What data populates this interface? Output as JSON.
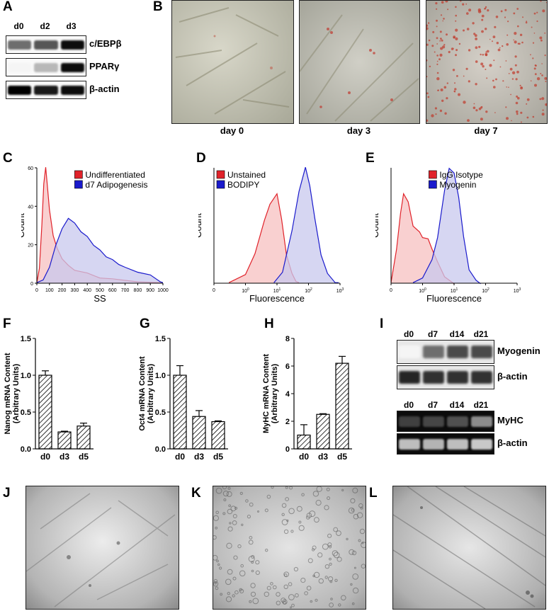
{
  "panels": {
    "a": {
      "label": "A",
      "lanes": [
        "d0",
        "d2",
        "d3"
      ],
      "blots": [
        {
          "name": "c/EBPβ",
          "intensity": [
            0.55,
            0.65,
            0.95
          ]
        },
        {
          "name": "PPARγ",
          "intensity": [
            0.0,
            0.25,
            0.95
          ]
        },
        {
          "name": "β-actin",
          "intensity": [
            1.0,
            0.9,
            0.95
          ]
        }
      ]
    },
    "b": {
      "label": "B",
      "captions": [
        "day 0",
        "day 3",
        "day 7"
      ]
    },
    "c": {
      "label": "C"
    },
    "d": {
      "label": "D"
    },
    "e": {
      "label": "E"
    },
    "f": {
      "label": "F"
    },
    "g": {
      "label": "G"
    },
    "h": {
      "label": "H"
    },
    "i": {
      "label": "I",
      "top_lanes": [
        "d0",
        "d7",
        "d14",
        "d21"
      ],
      "top_blots": [
        {
          "name": "Myogenin",
          "intensity": [
            0.0,
            0.55,
            0.7,
            0.7
          ]
        },
        {
          "name": "β-actin",
          "intensity": [
            0.85,
            0.8,
            0.8,
            0.8
          ]
        }
      ],
      "bottom_lanes": [
        "d0",
        "d7",
        "d14",
        "d21"
      ],
      "bottom_gels": [
        {
          "name": "MyHC",
          "intensity": [
            0.12,
            0.15,
            0.2,
            0.5
          ]
        },
        {
          "name": "β-actin",
          "intensity": [
            0.75,
            0.7,
            0.75,
            0.8
          ]
        }
      ]
    },
    "j": {
      "label": "J"
    },
    "k": {
      "label": "K"
    },
    "l": {
      "label": "L"
    }
  },
  "chart_data": [
    {
      "id": "C",
      "type": "area",
      "xlabel": "SS",
      "ylabel": "Count",
      "xlim": [
        0,
        1000
      ],
      "ylim": [
        0,
        60
      ],
      "xticks": [
        "0",
        "100",
        "200",
        "300",
        "400",
        "500",
        "600",
        "700",
        "800",
        "900",
        "1000"
      ],
      "yticks": [
        "0",
        "20",
        "40",
        "60"
      ],
      "legend_position": "top-right",
      "series": [
        {
          "name": "Undifferentiated",
          "color": "#e0222a",
          "fill": "#f7c0c0",
          "points": [
            [
              0,
              0
            ],
            [
              20,
              8
            ],
            [
              40,
              30
            ],
            [
              55,
              52
            ],
            [
              70,
              60
            ],
            [
              85,
              50
            ],
            [
              100,
              38
            ],
            [
              130,
              25
            ],
            [
              160,
              18
            ],
            [
              200,
              13
            ],
            [
              250,
              9
            ],
            [
              300,
              7
            ],
            [
              400,
              5
            ],
            [
              500,
              3
            ],
            [
              600,
              2
            ],
            [
              800,
              1
            ],
            [
              1000,
              0
            ]
          ]
        },
        {
          "name": "d7 Adipogenesis",
          "color": "#1a1acc",
          "fill": "#c8c8ee",
          "points": [
            [
              0,
              0
            ],
            [
              50,
              2
            ],
            [
              100,
              8
            ],
            [
              150,
              20
            ],
            [
              200,
              28
            ],
            [
              250,
              34
            ],
            [
              300,
              31
            ],
            [
              350,
              27
            ],
            [
              400,
              24
            ],
            [
              450,
              20
            ],
            [
              500,
              17
            ],
            [
              550,
              14
            ],
            [
              600,
              12
            ],
            [
              650,
              10
            ],
            [
              700,
              8
            ],
            [
              800,
              6
            ],
            [
              900,
              4
            ],
            [
              980,
              1
            ],
            [
              1000,
              0
            ]
          ]
        }
      ]
    },
    {
      "id": "D",
      "type": "area",
      "xlabel": "Fluorescence",
      "ylabel": "Count",
      "xscale": "log",
      "xlim": [
        0.1,
        1000
      ],
      "xticks": [
        "0",
        "10^0",
        "10^1",
        "10^2",
        "10^3"
      ],
      "legend_position": "top-left",
      "series": [
        {
          "name": "Unstained",
          "color": "#e0222a",
          "fill": "#f7c0c0",
          "points": [
            [
              0.3,
              0
            ],
            [
              1,
              8
            ],
            [
              2,
              25
            ],
            [
              4,
              55
            ],
            [
              6,
              68
            ],
            [
              10,
              78
            ],
            [
              14,
              55
            ],
            [
              20,
              25
            ],
            [
              30,
              8
            ],
            [
              40,
              2
            ],
            [
              50,
              0
            ]
          ]
        },
        {
          "name": "BODIPY",
          "color": "#1a1acc",
          "fill": "#c8c8ee",
          "points": [
            [
              8,
              0
            ],
            [
              15,
              10
            ],
            [
              30,
              45
            ],
            [
              50,
              80
            ],
            [
              80,
              100
            ],
            [
              110,
              85
            ],
            [
              160,
              55
            ],
            [
              250,
              25
            ],
            [
              400,
              8
            ],
            [
              700,
              1
            ],
            [
              900,
              0
            ]
          ]
        }
      ]
    },
    {
      "id": "E",
      "type": "area",
      "xlabel": "Fluorescence",
      "ylabel": "Count",
      "xscale": "log",
      "xlim": [
        0.1,
        1000
      ],
      "xticks": [
        "0",
        "10^0",
        "10^1",
        "10^2",
        "10^3"
      ],
      "legend_position": "top-right",
      "series": [
        {
          "name": "IgG Isotype",
          "color": "#e0222a",
          "fill": "#f7c0c0",
          "points": [
            [
              0.1,
              0
            ],
            [
              0.15,
              30
            ],
            [
              0.2,
              60
            ],
            [
              0.25,
              78
            ],
            [
              0.35,
              70
            ],
            [
              0.5,
              50
            ],
            [
              0.8,
              44
            ],
            [
              1,
              40
            ],
            [
              1.5,
              38
            ],
            [
              2,
              30
            ],
            [
              3,
              18
            ],
            [
              5,
              6
            ],
            [
              8,
              1
            ],
            [
              10,
              0
            ]
          ]
        },
        {
          "name": "Myogenin",
          "color": "#1a1acc",
          "fill": "#c8c8ee",
          "points": [
            [
              0.5,
              0
            ],
            [
              1,
              5
            ],
            [
              2,
              20
            ],
            [
              3,
              40
            ],
            [
              5,
              80
            ],
            [
              7,
              100
            ],
            [
              10,
              95
            ],
            [
              14,
              75
            ],
            [
              20,
              40
            ],
            [
              30,
              12
            ],
            [
              50,
              2
            ],
            [
              70,
              0
            ]
          ]
        }
      ]
    },
    {
      "id": "F",
      "type": "bar",
      "ylabel": "Nanog mRNA Content\n(Arbitrary Units)",
      "categories": [
        "d0",
        "d3",
        "d5"
      ],
      "values": [
        1.0,
        0.23,
        0.31
      ],
      "errors": [
        0.06,
        0.01,
        0.04
      ],
      "ylim": [
        0,
        1.5
      ],
      "yticks": [
        "0.0",
        "0.5",
        "1.0",
        "1.5"
      ]
    },
    {
      "id": "G",
      "type": "bar",
      "ylabel": "Oct4 mRNA Content\n(Arbitrary Units)",
      "categories": [
        "d0",
        "d3",
        "d5"
      ],
      "values": [
        1.0,
        0.44,
        0.37
      ],
      "errors": [
        0.13,
        0.08,
        0.01
      ],
      "ylim": [
        0,
        1.5
      ],
      "yticks": [
        "0.0",
        "0.5",
        "1.0",
        "1.5"
      ]
    },
    {
      "id": "H",
      "type": "bar",
      "ylabel": "MyHC mRNA Content\n(Arbitrary Units)",
      "categories": [
        "d0",
        "d3",
        "d5"
      ],
      "values": [
        1.0,
        2.5,
        6.2
      ],
      "errors": [
        0.75,
        0.05,
        0.5
      ],
      "ylim": [
        0,
        8
      ],
      "yticks": [
        "0",
        "2",
        "4",
        "6",
        "8"
      ]
    }
  ]
}
